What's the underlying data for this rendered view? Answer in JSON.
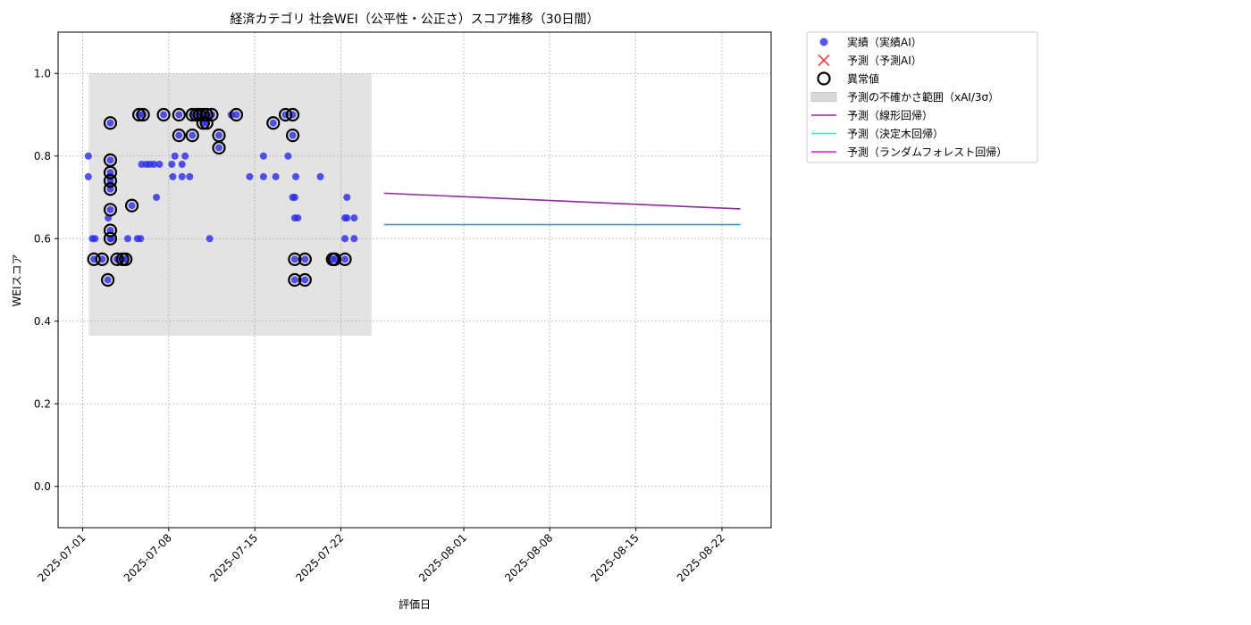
{
  "chart_data": {
    "type": "scatter",
    "title": "経済カテゴリ 社会WEI（公平性・公正さ）スコア推移（30日間）",
    "xlabel": "評価日",
    "ylabel": "WEIスコア",
    "xlim": [
      "2024-06-29",
      "2025-08-26"
    ],
    "ylim": [
      -0.1,
      1.1
    ],
    "x_ticks": [
      "2025-07-01",
      "2025-07-08",
      "2025-07-15",
      "2025-07-22",
      "2025-08-01",
      "2025-08-08",
      "2025-08-15",
      "2025-08-22"
    ],
    "y_ticks": [
      "0.0",
      "0.2",
      "0.4",
      "0.6",
      "0.8",
      "1.0"
    ],
    "grid": true,
    "legend_position": "outside-top-right",
    "legend": [
      {
        "key": "actual",
        "label": "実績（実績AI）",
        "marker": "circle",
        "color": "#2a2ae8"
      },
      {
        "key": "predicted",
        "label": "予測（予測AI）",
        "marker": "x",
        "color": "#ff4040"
      },
      {
        "key": "anomaly",
        "label": "異常値",
        "marker": "ring",
        "color": "#000000"
      },
      {
        "key": "band",
        "label": "予測の不確かさ範囲（xAI/3σ）",
        "marker": "patch",
        "color": "#d9d9d9"
      },
      {
        "key": "linear",
        "label": "予測（線形回帰）",
        "marker": "line",
        "color": "#8e2ba0"
      },
      {
        "key": "tree",
        "label": "予測（決定木回帰）",
        "marker": "line",
        "color": "#00ffff"
      },
      {
        "key": "forest",
        "label": "予測（ランダムフォレスト回帰）",
        "marker": "line",
        "color": "#ff00ff"
      }
    ],
    "uncertainty_band": {
      "x": [
        "2025-07-01 12:00",
        "2025-07-24 12:00"
      ],
      "y": [
        0.365,
        1.0
      ]
    },
    "series": [
      {
        "name": "実績（実績AI）",
        "points": [
          [
            "2025-07-01 11:00",
            0.8
          ],
          [
            "2025-07-01 11:00",
            0.75
          ],
          [
            "2025-07-01 19:00",
            0.6
          ],
          [
            "2025-07-02 00:00",
            0.6
          ],
          [
            "2025-07-01 22:00",
            0.55
          ],
          [
            "2025-07-02 14:00",
            0.55
          ],
          [
            "2025-07-03 01:00",
            0.5
          ],
          [
            "2025-07-03 02:00",
            0.65
          ],
          [
            "2025-07-03 06:00",
            0.88
          ],
          [
            "2025-07-03 06:00",
            0.79
          ],
          [
            "2025-07-03 06:00",
            0.76
          ],
          [
            "2025-07-03 06:00",
            0.74
          ],
          [
            "2025-07-03 06:00",
            0.72
          ],
          [
            "2025-07-03 06:00",
            0.67
          ],
          [
            "2025-07-03 06:00",
            0.62
          ],
          [
            "2025-07-03 06:00",
            0.6
          ],
          [
            "2025-07-03 06:00",
            0.75
          ],
          [
            "2025-07-03 06:00",
            0.73
          ],
          [
            "2025-07-03 08:00",
            0.6
          ],
          [
            "2025-07-03 19:00",
            0.55
          ],
          [
            "2025-07-04 06:00",
            0.55
          ],
          [
            "2025-07-04 12:00",
            0.55
          ],
          [
            "2025-07-04 16:00",
            0.6
          ],
          [
            "2025-07-05 00:00",
            0.68
          ],
          [
            "2025-07-05 11:00",
            0.6
          ],
          [
            "2025-07-05 17:00",
            0.6
          ],
          [
            "2025-07-05 14:00",
            0.9
          ],
          [
            "2025-07-05 22:00",
            0.9
          ],
          [
            "2025-07-05 19:00",
            0.78
          ],
          [
            "2025-07-06 04:00",
            0.78
          ],
          [
            "2025-07-06 11:00",
            0.78
          ],
          [
            "2025-07-06 19:00",
            0.78
          ],
          [
            "2025-07-07 00:00",
            0.7
          ],
          [
            "2025-07-07 06:00",
            0.78
          ],
          [
            "2025-07-07 14:00",
            0.9
          ],
          [
            "2025-07-08 06:00",
            0.78
          ],
          [
            "2025-07-08 08:00",
            0.75
          ],
          [
            "2025-07-08 12:00",
            0.8
          ],
          [
            "2025-07-08 20:00",
            0.85
          ],
          [
            "2025-07-08 20:00",
            0.9
          ],
          [
            "2025-07-09 02:00",
            0.78
          ],
          [
            "2025-07-09 02:00",
            0.75
          ],
          [
            "2025-07-09 08:00",
            0.8
          ],
          [
            "2025-07-09 17:00",
            0.75
          ],
          [
            "2025-07-09 22:00",
            0.85
          ],
          [
            "2025-07-09 22:00",
            0.9
          ],
          [
            "2025-07-10 06:00",
            0.9
          ],
          [
            "2025-07-10 12:00",
            0.9
          ],
          [
            "2025-07-10 19:00",
            0.88
          ],
          [
            "2025-07-10 19:00",
            0.9
          ],
          [
            "2025-07-11 02:00",
            0.88
          ],
          [
            "2025-07-11 02:00",
            0.9
          ],
          [
            "2025-07-11 08:00",
            0.6
          ],
          [
            "2025-07-11 12:00",
            0.9
          ],
          [
            "2025-07-12 02:00",
            0.85
          ],
          [
            "2025-07-12 02:00",
            0.82
          ],
          [
            "2025-07-13 02:00",
            0.9
          ],
          [
            "2025-07-13 12:00",
            0.9
          ],
          [
            "2025-07-14 14:00",
            0.75
          ],
          [
            "2025-07-15 17:00",
            0.8
          ],
          [
            "2025-07-15 17:00",
            0.75
          ],
          [
            "2025-07-16 12:00",
            0.88
          ],
          [
            "2025-07-16 17:00",
            0.75
          ],
          [
            "2025-07-17 12:00",
            0.9
          ],
          [
            "2025-07-17 17:00",
            0.8
          ],
          [
            "2025-07-18 02:00",
            0.9
          ],
          [
            "2025-07-18 02:00",
            0.85
          ],
          [
            "2025-07-18 02:00",
            0.7
          ],
          [
            "2025-07-18 06:00",
            0.7
          ],
          [
            "2025-07-18 06:00",
            0.65
          ],
          [
            "2025-07-18 08:00",
            0.75
          ],
          [
            "2025-07-18 12:00",
            0.65
          ],
          [
            "2025-07-18 06:00",
            0.55
          ],
          [
            "2025-07-18 06:00",
            0.5
          ],
          [
            "2025-07-19 02:00",
            0.55
          ],
          [
            "2025-07-19 02:00",
            0.5
          ],
          [
            "2025-07-20 08:00",
            0.75
          ],
          [
            "2025-07-21 08:00",
            0.55
          ],
          [
            "2025-07-21 12:00",
            0.55
          ],
          [
            "2025-07-22 08:00",
            0.55
          ],
          [
            "2025-07-22 12:00",
            0.7
          ],
          [
            "2025-07-22 12:00",
            0.65
          ],
          [
            "2025-07-22 08:00",
            0.65
          ],
          [
            "2025-07-22 08:00",
            0.6
          ],
          [
            "2025-07-23 02:00",
            0.65
          ],
          [
            "2025-07-23 02:00",
            0.6
          ]
        ]
      },
      {
        "name": "異常値",
        "points": [
          [
            "2025-07-01 22:00",
            0.55
          ],
          [
            "2025-07-02 14:00",
            0.55
          ],
          [
            "2025-07-03 01:00",
            0.5
          ],
          [
            "2025-07-03 06:00",
            0.88
          ],
          [
            "2025-07-03 06:00",
            0.79
          ],
          [
            "2025-07-03 06:00",
            0.76
          ],
          [
            "2025-07-03 06:00",
            0.74
          ],
          [
            "2025-07-03 06:00",
            0.72
          ],
          [
            "2025-07-03 06:00",
            0.67
          ],
          [
            "2025-07-03 06:00",
            0.62
          ],
          [
            "2025-07-03 06:00",
            0.6
          ],
          [
            "2025-07-03 19:00",
            0.55
          ],
          [
            "2025-07-04 06:00",
            0.55
          ],
          [
            "2025-07-04 12:00",
            0.55
          ],
          [
            "2025-07-05 00:00",
            0.68
          ],
          [
            "2025-07-05 14:00",
            0.9
          ],
          [
            "2025-07-05 22:00",
            0.9
          ],
          [
            "2025-07-07 14:00",
            0.9
          ],
          [
            "2025-07-08 20:00",
            0.85
          ],
          [
            "2025-07-08 20:00",
            0.9
          ],
          [
            "2025-07-09 22:00",
            0.85
          ],
          [
            "2025-07-09 22:00",
            0.9
          ],
          [
            "2025-07-10 06:00",
            0.9
          ],
          [
            "2025-07-10 12:00",
            0.9
          ],
          [
            "2025-07-10 19:00",
            0.88
          ],
          [
            "2025-07-10 19:00",
            0.9
          ],
          [
            "2025-07-11 02:00",
            0.88
          ],
          [
            "2025-07-11 02:00",
            0.9
          ],
          [
            "2025-07-11 12:00",
            0.9
          ],
          [
            "2025-07-12 02:00",
            0.85
          ],
          [
            "2025-07-12 02:00",
            0.82
          ],
          [
            "2025-07-13 12:00",
            0.9
          ],
          [
            "2025-07-16 12:00",
            0.88
          ],
          [
            "2025-07-17 12:00",
            0.9
          ],
          [
            "2025-07-18 02:00",
            0.9
          ],
          [
            "2025-07-18 02:00",
            0.85
          ],
          [
            "2025-07-18 06:00",
            0.55
          ],
          [
            "2025-07-18 06:00",
            0.5
          ],
          [
            "2025-07-19 02:00",
            0.55
          ],
          [
            "2025-07-19 02:00",
            0.5
          ],
          [
            "2025-07-21 08:00",
            0.55
          ],
          [
            "2025-07-21 12:00",
            0.55
          ],
          [
            "2025-07-22 08:00",
            0.55
          ]
        ]
      },
      {
        "name": "予測（線形回帰）",
        "points": [
          [
            "2025-07-25 12:00",
            0.71
          ],
          [
            "2025-08-23 12:00",
            0.672
          ]
        ]
      },
      {
        "name": "予測（決定木回帰）",
        "points": [
          [
            "2025-07-25 12:00",
            0.634
          ],
          [
            "2025-08-23 12:00",
            0.634
          ]
        ]
      },
      {
        "name": "予測（ランダムフォレスト回帰）",
        "points": [
          [
            "2025-07-25 12:00",
            0.634
          ],
          [
            "2025-08-23 12:00",
            0.634
          ]
        ]
      }
    ]
  }
}
